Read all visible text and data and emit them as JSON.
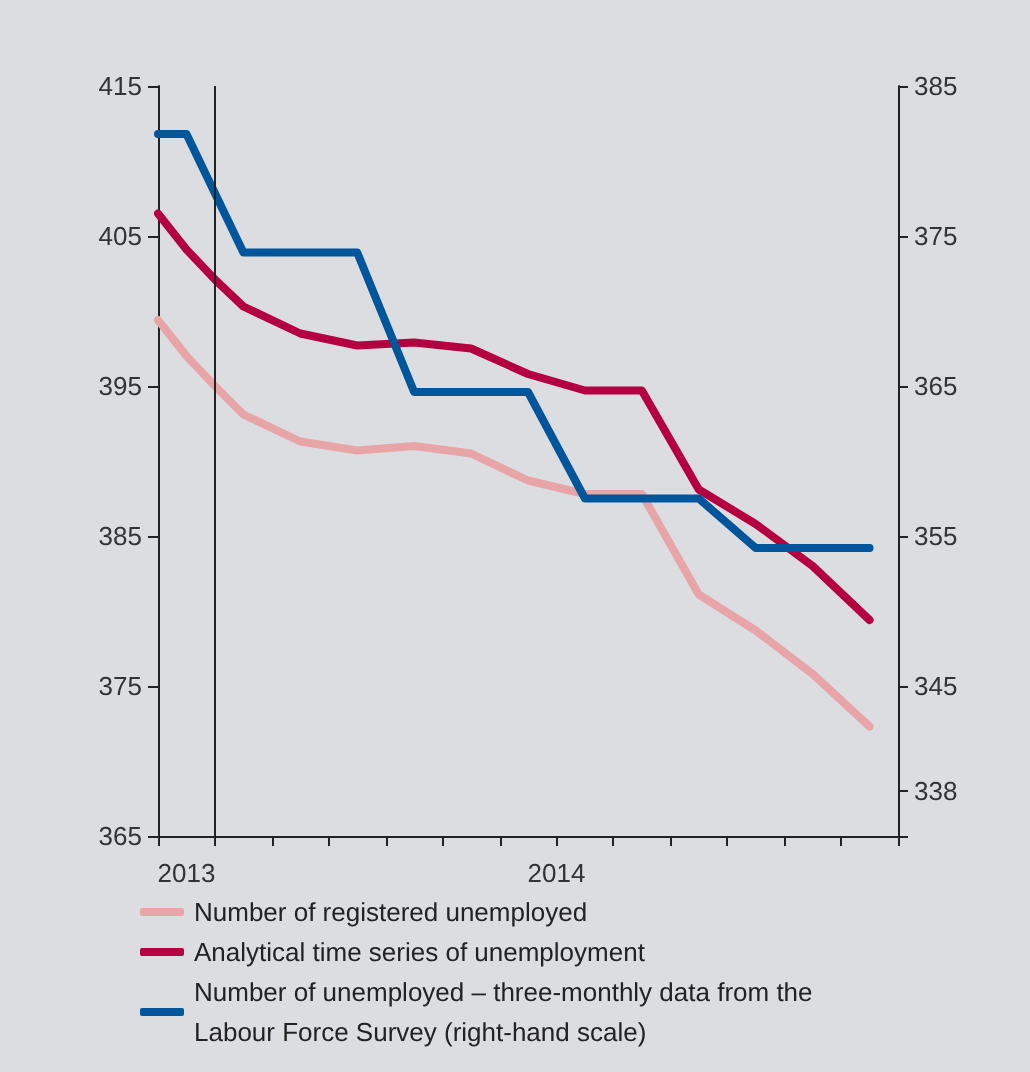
{
  "chart_data": {
    "type": "line",
    "categories": [
      null,
      "2013",
      null,
      null,
      null,
      null,
      null,
      null,
      null,
      null,
      null,
      null,
      null,
      null,
      "2014",
      null,
      null,
      null,
      null,
      null,
      null,
      null,
      null,
      null,
      null,
      null,
      null
    ],
    "ylim": [
      365,
      415
    ],
    "yticks": [
      365,
      375,
      385,
      395,
      405,
      415
    ],
    "y2lim": [
      335,
      385
    ],
    "y2ticks": [
      {
        "value": 335,
        "label": null
      },
      338,
      345,
      355,
      365,
      375,
      385
    ],
    "series": [
      {
        "name": "Number of registered unemployed",
        "color": "#e8a5a8",
        "values": [
          399.4,
          397.0,
          395.0,
          393.1,
          null,
          391.3,
          null,
          390.7,
          null,
          391.0,
          null,
          390.5,
          null,
          388.7,
          null,
          387.8,
          null,
          387.8,
          null,
          381.1,
          null,
          378.7,
          null,
          375.8,
          null,
          372.3,
          null
        ]
      },
      {
        "name": "Analytical time series of unemployment",
        "color": "#b5003f",
        "values": [
          406.5,
          404.1,
          402.1,
          400.3,
          null,
          398.5,
          null,
          397.7,
          null,
          397.9,
          null,
          397.5,
          null,
          395.8,
          null,
          394.7,
          null,
          394.7,
          null,
          388.1,
          null,
          385.8,
          null,
          383.0,
          null,
          379.4,
          null
        ]
      },
      {
        "name": "Number of unemployed – three-monthly data from the Labour Force Survey (right-hand scale)",
        "color": "#00559b",
        "axis": "y2",
        "values": [
          381.8,
          381.8,
          null,
          373.9,
          null,
          373.9,
          null,
          373.9,
          null,
          364.6,
          null,
          364.6,
          null,
          364.6,
          null,
          357.5,
          null,
          357.5,
          null,
          357.5,
          null,
          354.2,
          null,
          354.2,
          null,
          354.2,
          null
        ]
      }
    ],
    "legend": "bottom",
    "marker": "none",
    "line_style": "solid"
  }
}
